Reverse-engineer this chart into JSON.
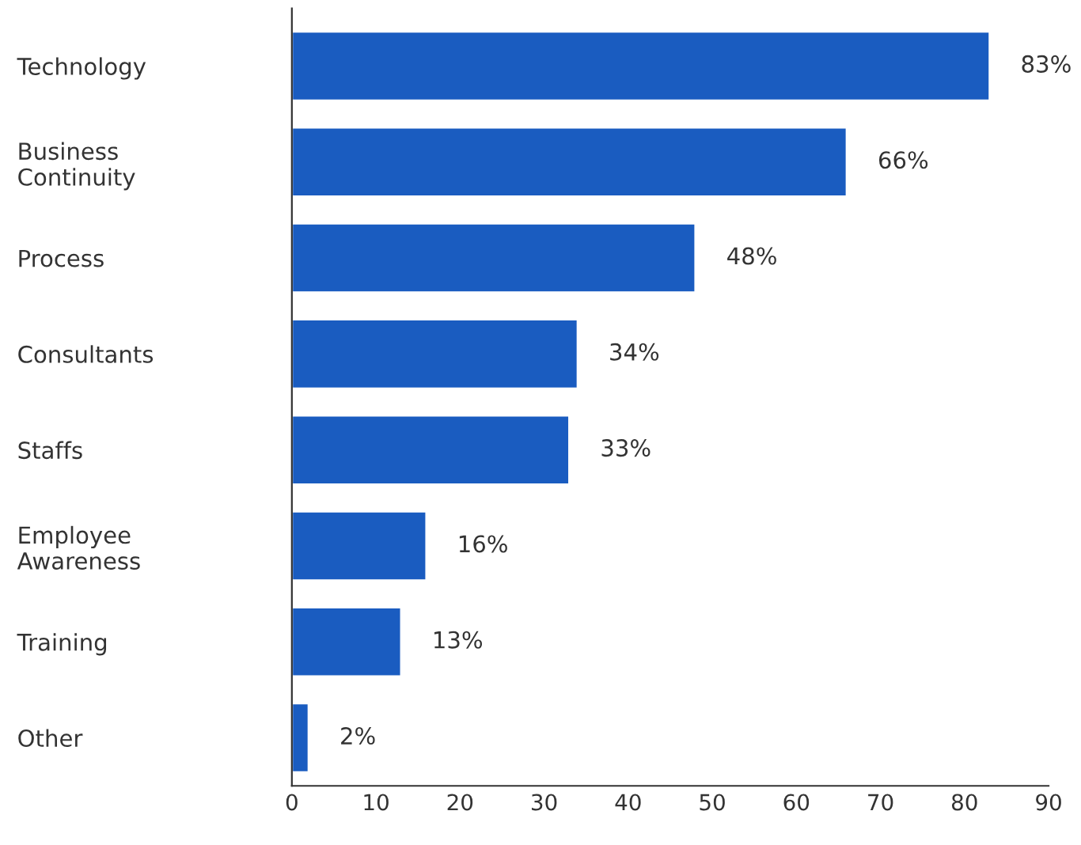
{
  "chart_data": {
    "type": "bar",
    "orientation": "horizontal",
    "categories": [
      "Technology",
      "Business\nContinuity",
      "Process",
      "Consultants",
      "Staffs",
      "Employee\nAwareness",
      "Training",
      "Other"
    ],
    "values": [
      83,
      66,
      48,
      34,
      33,
      16,
      13,
      2
    ],
    "value_labels": [
      "83%",
      "66%",
      "48%",
      "34%",
      "33%",
      "16%",
      "13%",
      "2%"
    ],
    "color": "#1a5cc0",
    "xlim": [
      0,
      90
    ],
    "xticks": [
      0,
      10,
      20,
      30,
      40,
      50,
      60,
      70,
      80,
      90
    ],
    "grid": false
  }
}
